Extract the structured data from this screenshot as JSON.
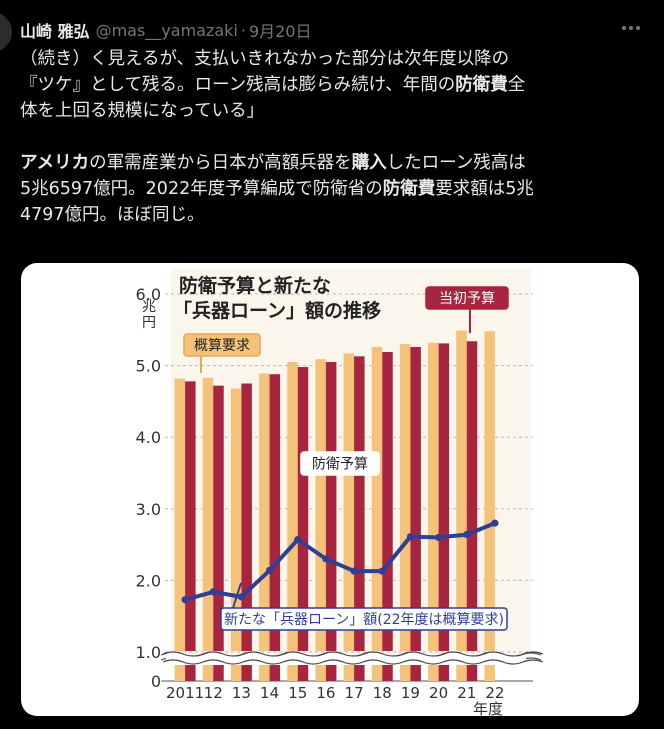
{
  "tweet": {
    "display_name": "山崎 雅弘",
    "handle": "@mas__yamazaki",
    "separator": "·",
    "date": "9月20日",
    "more_icon": "more-horizontal-icon",
    "paragraphs": [
      {
        "segments": [
          {
            "text": "（続き）く見えるが、支払いきれなかった部分は次年度以降の",
            "bold": false
          }
        ]
      },
      {
        "segments": [
          {
            "text": "『ツケ』として残る。ローン残高は膨らみ続け、年間の",
            "bold": false
          },
          {
            "text": "防衛費",
            "bold": true
          },
          {
            "text": "全",
            "bold": false
          }
        ]
      },
      {
        "segments": [
          {
            "text": "体を上回る規模になっている」",
            "bold": false
          }
        ]
      },
      {
        "segments": []
      },
      {
        "segments": [
          {
            "text": "アメリカ",
            "bold": true
          },
          {
            "text": "の軍需産業から日本が高額兵器を",
            "bold": false
          },
          {
            "text": "購入",
            "bold": true
          },
          {
            "text": "したローン残高は",
            "bold": false
          }
        ]
      },
      {
        "segments": [
          {
            "text": "5兆6597億円。2022年度予算編成で防衛省の",
            "bold": false
          },
          {
            "text": "防衛費",
            "bold": true
          },
          {
            "text": "要求額は5兆",
            "bold": false
          }
        ]
      },
      {
        "segments": [
          {
            "text": "4797億円。ほぼ同じ。",
            "bold": false
          }
        ]
      }
    ]
  },
  "chart_data": {
    "type": "bar",
    "title_line1": "防衛予算と新たな",
    "title_line2": "「兵器ローン」額の推移",
    "y_unit": "兆円",
    "x_unit": "年度",
    "ylim": [
      0,
      6
    ],
    "y_ticks": [
      "6.0",
      "5.0",
      "4.0",
      "3.0",
      "2.0",
      "1.0",
      "0"
    ],
    "categories": [
      "2011",
      "12",
      "13",
      "14",
      "15",
      "16",
      "17",
      "18",
      "19",
      "20",
      "21",
      "22"
    ],
    "series": [
      {
        "name": "概算要求",
        "values": [
          4.82,
          4.83,
          4.68,
          4.89,
          5.05,
          5.09,
          5.17,
          5.26,
          5.3,
          5.32,
          5.49,
          5.48
        ]
      },
      {
        "name": "当初予算",
        "values": [
          4.78,
          4.72,
          4.75,
          4.88,
          4.98,
          5.05,
          5.13,
          5.19,
          5.26,
          5.31,
          5.34,
          null
        ]
      },
      {
        "name": "新たな「兵器ローン」額(22年度は概算要求)",
        "values": [
          1.73,
          1.84,
          1.77,
          2.14,
          2.57,
          2.3,
          2.13,
          2.13,
          2.61,
          2.6,
          2.64,
          2.8
        ]
      }
    ],
    "annotations": [
      "防衛予算"
    ],
    "colors": {
      "request": "#f5c27a",
      "initial": "#a8253f",
      "loan": "#2f3f98"
    }
  }
}
